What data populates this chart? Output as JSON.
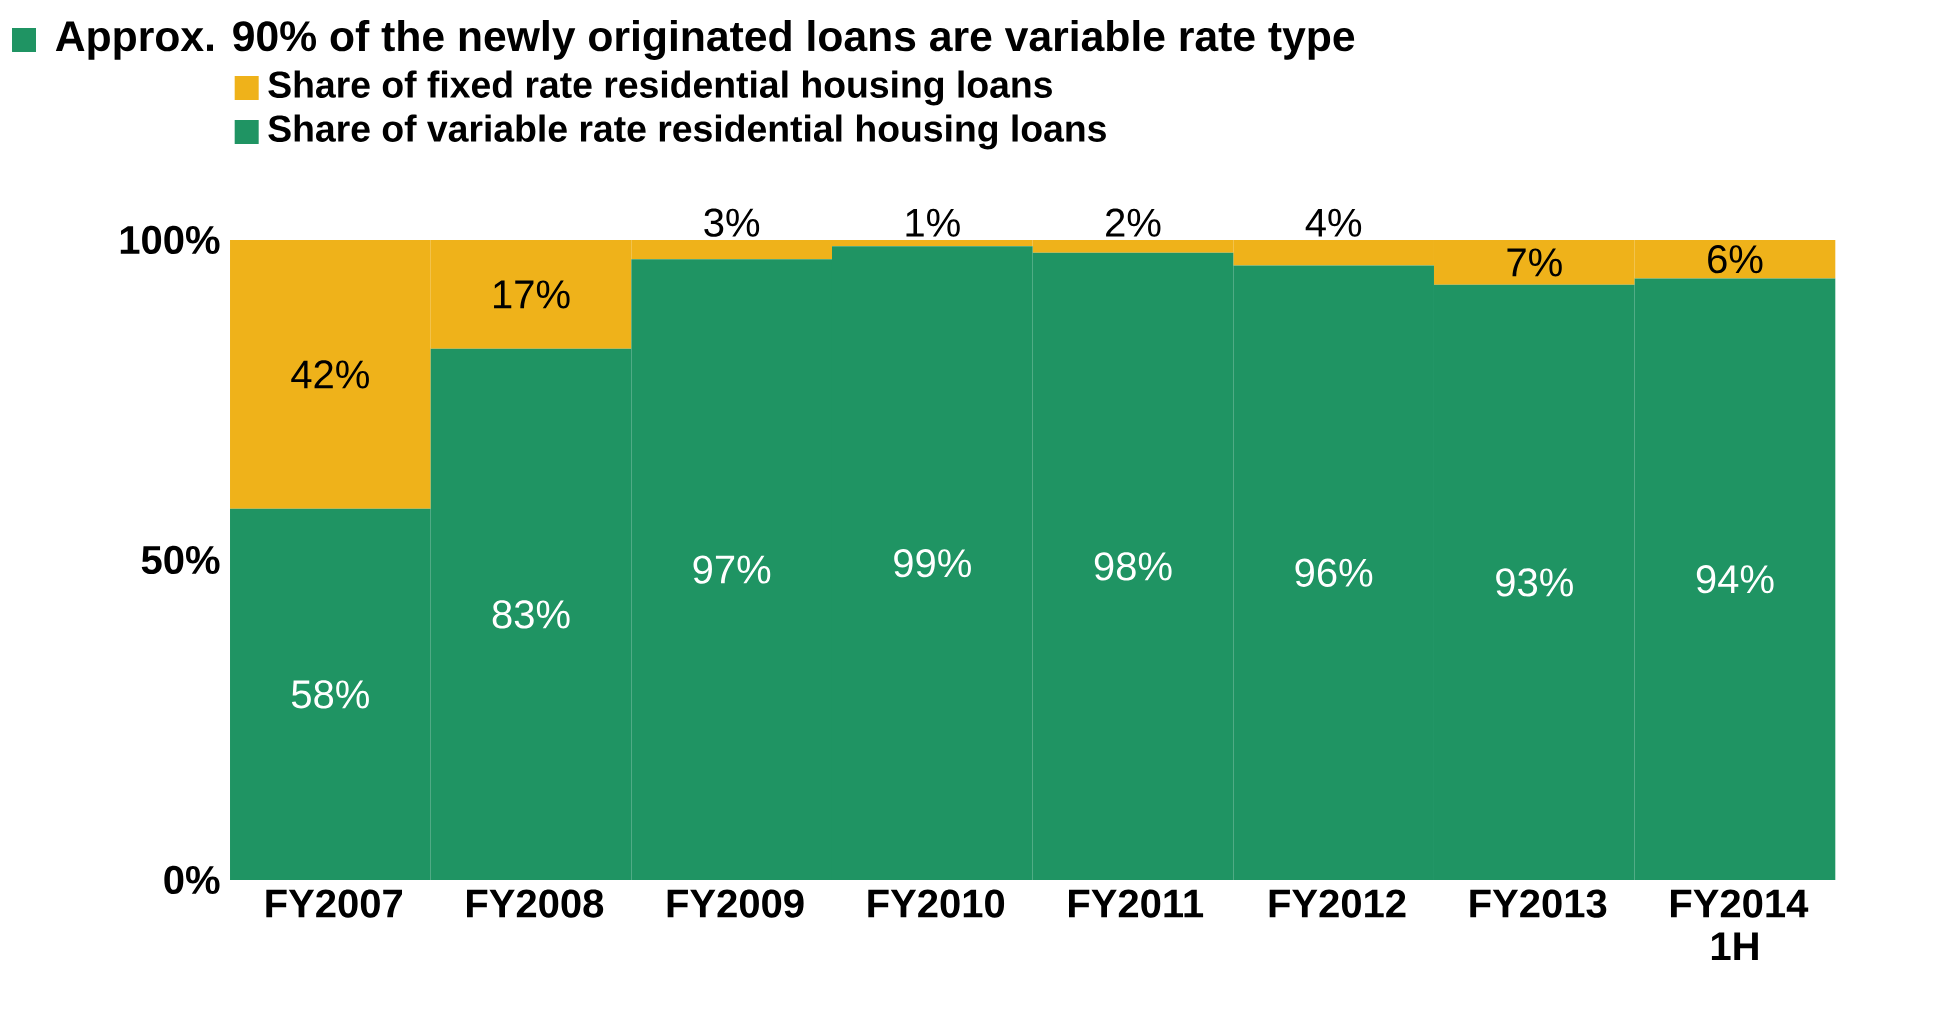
{
  "chart_data": {
    "type": "bar",
    "stacked": true,
    "title": "Approx. 90% of the newly originated loans are variable rate type",
    "categories": [
      "FY2007",
      "FY2008",
      "FY2009",
      "FY2010",
      "FY2011",
      "FY2012",
      "FY2013",
      "FY2014 1H"
    ],
    "series": [
      {
        "name": "Share of variable rate residential housing loans",
        "color": "#1f9463",
        "values": [
          58,
          83,
          97,
          99,
          98,
          96,
          93,
          94
        ],
        "value_labels": [
          "58%",
          "83%",
          "97%",
          "99%",
          "98%",
          "96%",
          "93%",
          "94%"
        ]
      },
      {
        "name": "Share of fixed rate residential housing loans",
        "color": "#efb21a",
        "values": [
          42,
          17,
          3,
          1,
          2,
          4,
          7,
          6
        ],
        "value_labels": [
          "42%",
          "17%",
          "3%",
          "1%",
          "2%",
          "4%",
          "7%",
          "6%"
        ]
      }
    ],
    "ylim": [
      0,
      100
    ],
    "yticks": [
      {
        "value": 0,
        "label": "0%"
      },
      {
        "value": 50,
        "label": "50%"
      },
      {
        "value": 100,
        "label": "100%"
      }
    ],
    "legend": "top left",
    "grid": false
  }
}
